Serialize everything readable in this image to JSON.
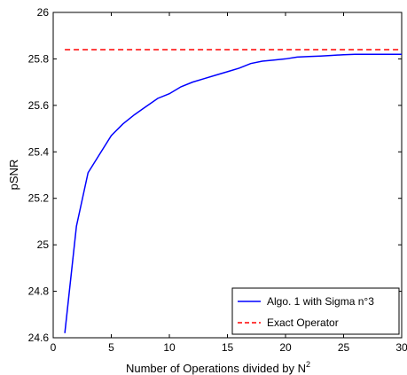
{
  "chart_data": {
    "type": "line",
    "xlabel": "Number of Operations divided by N",
    "xlabel_superscript": "2",
    "ylabel": "pSNR",
    "xlim": [
      0,
      30
    ],
    "ylim": [
      24.6,
      26
    ],
    "x_ticks": [
      0,
      5,
      10,
      15,
      20,
      25,
      30
    ],
    "y_ticks": [
      24.6,
      24.8,
      25,
      25.2,
      25.4,
      25.6,
      25.8,
      26
    ],
    "grid": false,
    "legend_position": "bottom-right",
    "series": [
      {
        "name": "Algo. 1 with Sigma n°3",
        "color": "#0000ff",
        "style": "solid",
        "x": [
          1,
          2,
          3,
          4,
          5,
          6,
          7,
          8,
          9,
          10,
          11,
          12,
          13,
          14,
          15,
          16,
          17,
          18,
          19,
          20,
          21,
          22,
          23,
          24,
          25,
          26,
          27,
          28,
          29,
          30
        ],
        "y": [
          24.62,
          25.08,
          25.31,
          25.39,
          25.47,
          25.52,
          25.56,
          25.595,
          25.63,
          25.65,
          25.68,
          25.7,
          25.715,
          25.73,
          25.745,
          25.76,
          25.78,
          25.79,
          25.795,
          25.8,
          25.808,
          25.81,
          25.812,
          25.815,
          25.818,
          25.82,
          25.82,
          25.82,
          25.82,
          25.82
        ]
      },
      {
        "name": "Exact Operator",
        "color": "#ff0000",
        "style": "dashed",
        "x": [
          1,
          30
        ],
        "y": [
          25.84,
          25.84
        ]
      }
    ]
  }
}
